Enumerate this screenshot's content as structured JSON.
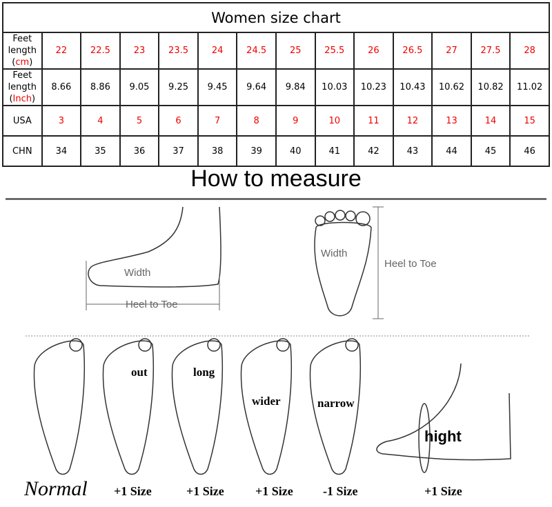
{
  "size_chart": {
    "title": "Women size chart",
    "rows": [
      {
        "label": "Feet length",
        "unit": "cm",
        "values": [
          "22",
          "22.5",
          "23",
          "23.5",
          "24",
          "24.5",
          "25",
          "25.5",
          "26",
          "26.5",
          "27",
          "27.5",
          "28"
        ],
        "red": true
      },
      {
        "label": "Feet length",
        "unit": "Inch",
        "values": [
          "8.66",
          "8.86",
          "9.05",
          "9.25",
          "9.45",
          "9.64",
          "9.84",
          "10.03",
          "10.23",
          "10.43",
          "10.62",
          "10.82",
          "11.02"
        ],
        "red": false
      },
      {
        "label": "USA",
        "values": [
          "3",
          "4",
          "5",
          "6",
          "7",
          "8",
          "9",
          "10",
          "11",
          "12",
          "13",
          "14",
          "15"
        ],
        "red": true
      },
      {
        "label": "CHN",
        "values": [
          "34",
          "35",
          "36",
          "37",
          "38",
          "39",
          "40",
          "41",
          "42",
          "43",
          "44",
          "45",
          "46"
        ],
        "red": false
      }
    ],
    "accent_color": "#ee0000"
  },
  "measure": {
    "title": "How to measure",
    "side_width": "Width",
    "side_heel_to_toe": "Heel to Toe",
    "top_width": "Width",
    "top_heel_to_toe": "Heel to Toe"
  },
  "foot_types": [
    {
      "label": "",
      "size": "Normal"
    },
    {
      "label": "out",
      "size": "+1 Size"
    },
    {
      "label": "long",
      "size": "+1 Size"
    },
    {
      "label": "wider",
      "size": "+1 Size"
    },
    {
      "label": "narrow",
      "size": "-1 Size"
    },
    {
      "label": "hight",
      "size": "+1 Size"
    }
  ]
}
